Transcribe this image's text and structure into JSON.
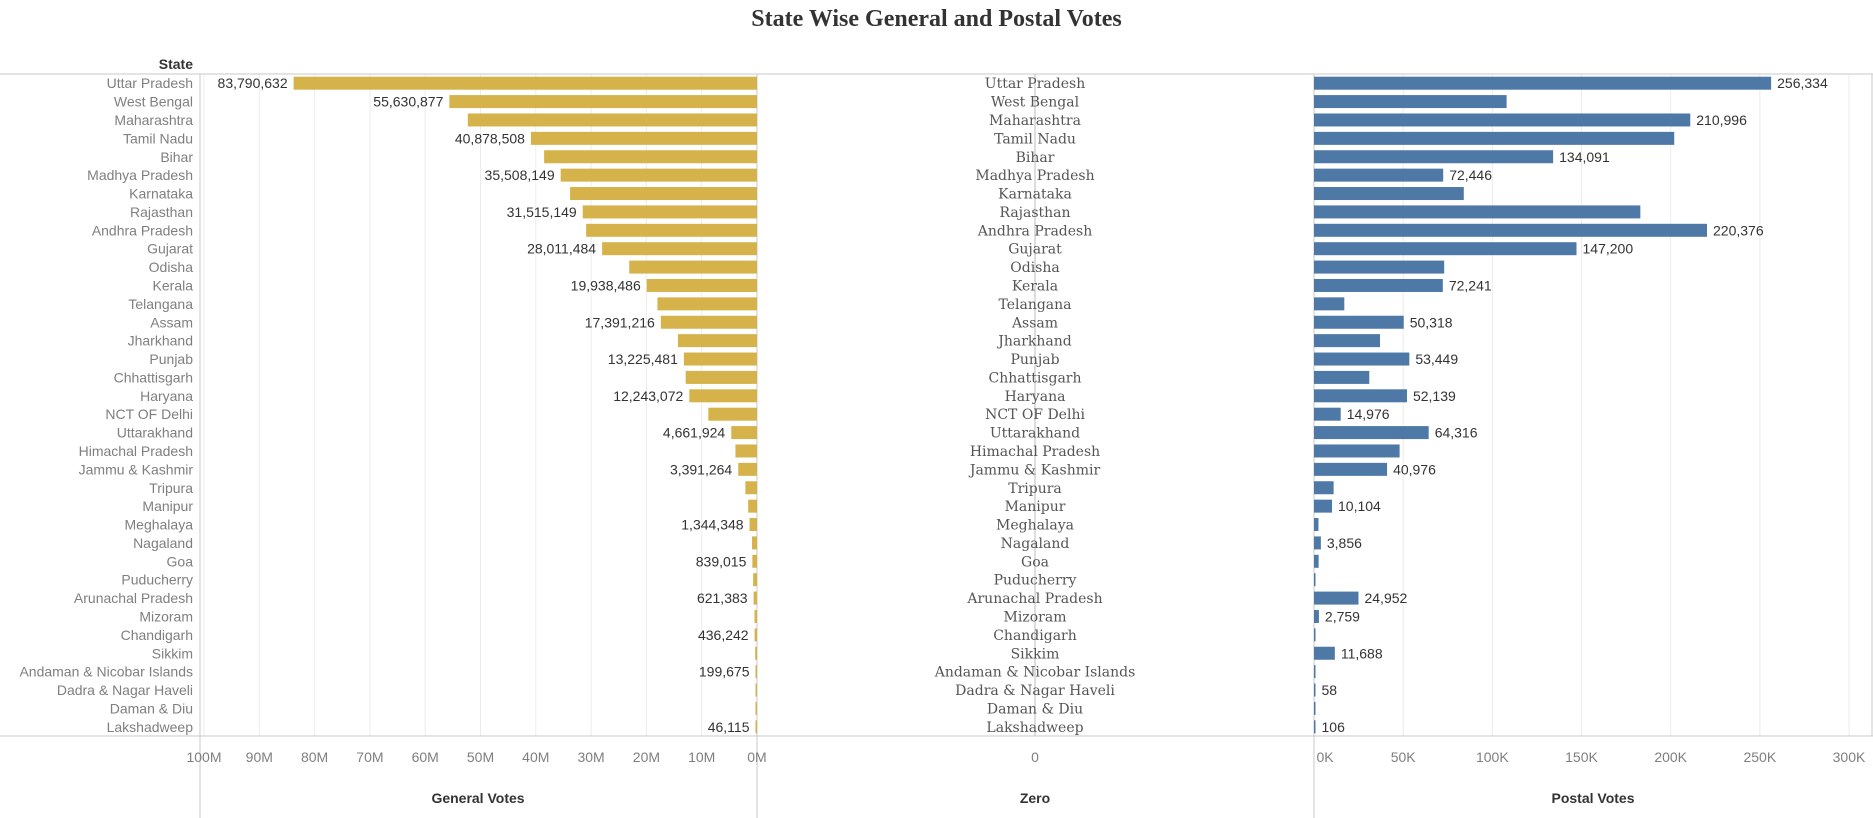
{
  "chart_data": {
    "type": "bar",
    "title": "State Wise General and Postal Votes",
    "row_header": "State",
    "center_column_label": "Zero",
    "center_tick": "0",
    "colors": {
      "general": "#d6b34a",
      "postal": "#4e79a7"
    },
    "grid": true,
    "categories": [
      "Uttar Pradesh",
      "West Bengal",
      "Maharashtra",
      "Tamil Nadu",
      "Bihar",
      "Madhya Pradesh",
      "Karnataka",
      "Rajasthan",
      "Andhra Pradesh",
      "Gujarat",
      "Odisha",
      "Kerala",
      "Telangana",
      "Assam",
      "Jharkhand",
      "Punjab",
      "Chhattisgarh",
      "Haryana",
      "NCT OF Delhi",
      "Uttarakhand",
      "Himachal Pradesh",
      "Jammu & Kashmir",
      "Tripura",
      "Manipur",
      "Meghalaya",
      "Nagaland",
      "Goa",
      "Puducherry",
      "Arunachal Pradesh",
      "Mizoram",
      "Chandigarh",
      "Sikkim",
      "Andaman & Nicobar Islands",
      "Dadra & Nagar Haveli",
      "Daman & Diu",
      "Lakshadweep"
    ],
    "series": [
      {
        "name": "General Votes",
        "xlim": [
          0,
          100000000
        ],
        "ticks": [
          100000000,
          90000000,
          80000000,
          70000000,
          60000000,
          50000000,
          40000000,
          30000000,
          20000000,
          10000000,
          0
        ],
        "tick_labels": [
          "100M",
          "90M",
          "80M",
          "70M",
          "60M",
          "50M",
          "40M",
          "30M",
          "20M",
          "10M",
          "0M"
        ],
        "values": [
          83790632,
          55630877,
          52300000,
          40878508,
          38500000,
          35508149,
          33800000,
          31515149,
          30900000,
          28011484,
          23100000,
          19938486,
          18000000,
          17391216,
          14300000,
          13225481,
          12900000,
          12243072,
          8800000,
          4661924,
          3900000,
          3391264,
          2100000,
          1600000,
          1344348,
          900000,
          839015,
          700000,
          621383,
          450000,
          436242,
          330000,
          199675,
          180000,
          100000,
          46115
        ],
        "labels": [
          "83,790,632",
          "55,630,877",
          "",
          "40,878,508",
          "",
          "35,508,149",
          "",
          "31,515,149",
          "",
          "28,011,484",
          "",
          "19,938,486",
          "",
          "17,391,216",
          "",
          "13,225,481",
          "",
          "12,243,072",
          "",
          "4,661,924",
          "",
          "3,391,264",
          "",
          "",
          "1,344,348",
          "",
          "839,015",
          "",
          "621,383",
          "",
          "436,242",
          "",
          "199,675",
          "",
          "",
          "46,115"
        ]
      },
      {
        "name": "Postal Votes",
        "xlim": [
          0,
          300000
        ],
        "ticks": [
          0,
          50000,
          100000,
          150000,
          200000,
          250000,
          300000
        ],
        "tick_labels": [
          "0K",
          "50K",
          "100K",
          "150K",
          "200K",
          "250K",
          "300K"
        ],
        "values": [
          256334,
          108000,
          210996,
          202000,
          134091,
          72446,
          84000,
          183000,
          220376,
          147200,
          73000,
          72241,
          17000,
          50318,
          37000,
          53449,
          31000,
          52139,
          14976,
          64316,
          48000,
          40976,
          11000,
          10104,
          2500,
          3856,
          2600,
          800,
          24952,
          2759,
          700,
          11688,
          500,
          58,
          400,
          106
        ],
        "labels": [
          "256,334",
          "",
          "210,996",
          "",
          "134,091",
          "72,446",
          "",
          "",
          "220,376",
          "147,200",
          "",
          "72,241",
          "",
          "50,318",
          "",
          "53,449",
          "",
          "52,139",
          "14,976",
          "64,316",
          "",
          "40,976",
          "",
          "10,104",
          "",
          "3,856",
          "",
          "",
          "24,952",
          "2,759",
          "",
          "11,688",
          "",
          "58",
          "",
          "106"
        ]
      }
    ]
  }
}
